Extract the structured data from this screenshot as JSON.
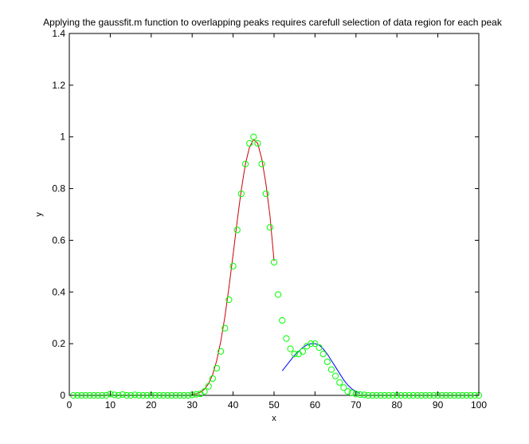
{
  "chart_data": {
    "type": "scatter",
    "title": "Applying the gaussfit.m function to overlapping peaks requires carefull selection of data region for each peak",
    "xlabel": "x",
    "ylabel": "y",
    "xlim": [
      0,
      100
    ],
    "ylim": [
      0,
      1.4
    ],
    "xticks": [
      0,
      10,
      20,
      30,
      40,
      50,
      60,
      70,
      80,
      90,
      100
    ],
    "yticks": [
      0,
      0.2,
      0.4,
      0.6,
      0.8,
      1,
      1.2,
      1.4
    ],
    "xtick_labels": [
      "0",
      "10",
      "20",
      "30",
      "40",
      "50",
      "60",
      "70",
      "80",
      "90",
      "100"
    ],
    "ytick_labels": [
      "0",
      "0.2",
      "0.4",
      "0.6",
      "0.8",
      "1",
      "1.2",
      "1.4"
    ],
    "grid": false,
    "colors": {
      "data_markers": "#00ff00",
      "fit_peak1": "#cc0000",
      "fit_peak2": "#0000ff"
    },
    "series": [
      {
        "kind": "markers",
        "marker": "o",
        "x": [
          1,
          2,
          3,
          4,
          5,
          6,
          7,
          8,
          9,
          10,
          11,
          12,
          13,
          14,
          15,
          16,
          17,
          18,
          19,
          20,
          21,
          22,
          23,
          24,
          25,
          26,
          27,
          28,
          29,
          30,
          31,
          32,
          33,
          34,
          35,
          36,
          37,
          38,
          39,
          40,
          41,
          42,
          43,
          44,
          45,
          46,
          47,
          48,
          49,
          50,
          51,
          52,
          53,
          54,
          55,
          56,
          57,
          58,
          59,
          60,
          61,
          62,
          63,
          64,
          65,
          66,
          67,
          68,
          69,
          70,
          71,
          72,
          73,
          74,
          75,
          76,
          77,
          78,
          79,
          80,
          81,
          82,
          83,
          84,
          85,
          86,
          87,
          88,
          89,
          90,
          91,
          92,
          93,
          94,
          95,
          96,
          97,
          98,
          99,
          100
        ],
        "y": [
          0,
          0,
          0,
          0,
          0,
          0,
          0,
          0,
          0,
          0.005,
          0.002,
          0,
          0.003,
          0,
          0,
          0.002,
          0,
          0,
          0,
          0,
          0,
          0,
          0,
          0,
          0,
          0,
          0,
          0,
          0,
          0.002,
          0.004,
          0.006,
          0.015,
          0.035,
          0.065,
          0.105,
          0.17,
          0.26,
          0.37,
          0.5,
          0.64,
          0.78,
          0.895,
          0.975,
          1.0,
          0.975,
          0.895,
          0.78,
          0.65,
          0.515,
          0.39,
          0.29,
          0.22,
          0.18,
          0.16,
          0.16,
          0.17,
          0.19,
          0.2,
          0.2,
          0.185,
          0.16,
          0.13,
          0.1,
          0.075,
          0.05,
          0.03,
          0.015,
          0.01,
          0.005,
          0.003,
          0.002,
          0,
          0,
          0,
          0,
          0,
          0,
          0,
          0,
          0,
          0,
          0,
          0,
          0,
          0,
          0,
          0,
          0,
          0,
          0,
          0,
          0,
          0,
          0,
          0,
          0,
          0,
          0,
          0
        ]
      },
      {
        "kind": "line",
        "x": [
          30,
          31,
          32,
          33,
          34,
          35,
          36,
          37,
          38,
          39,
          40,
          41,
          42,
          43,
          44,
          45,
          46,
          47,
          48,
          49,
          50
        ],
        "y": [
          0.003,
          0.006,
          0.012,
          0.024,
          0.045,
          0.08,
          0.135,
          0.21,
          0.305,
          0.42,
          0.545,
          0.675,
          0.795,
          0.895,
          0.96,
          0.99,
          0.975,
          0.915,
          0.82,
          0.695,
          0.52
        ]
      },
      {
        "kind": "line",
        "x": [
          52,
          53,
          54,
          55,
          56,
          57,
          58,
          59,
          60,
          61,
          62,
          63,
          64,
          65,
          66,
          67,
          68,
          69,
          70,
          71
        ],
        "y": [
          0.095,
          0.115,
          0.135,
          0.155,
          0.17,
          0.185,
          0.195,
          0.2,
          0.2,
          0.195,
          0.18,
          0.16,
          0.135,
          0.11,
          0.085,
          0.06,
          0.04,
          0.025,
          0.015,
          0.008
        ]
      }
    ]
  }
}
